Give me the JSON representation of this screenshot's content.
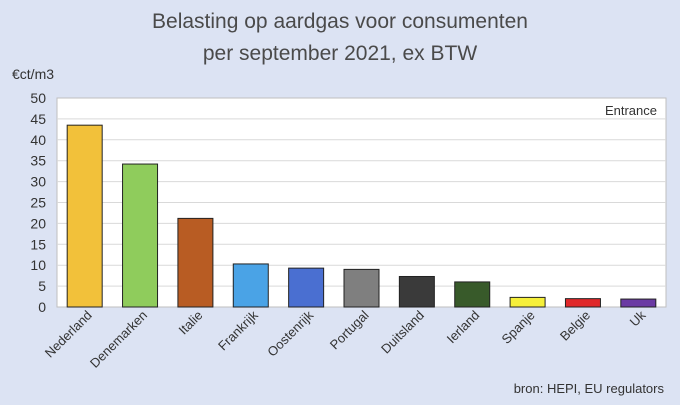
{
  "chart_data": {
    "type": "bar",
    "title": "Belasting op aardgas voor consumenten",
    "subtitle": "per september 2021, ex BTW",
    "ylabel": "€ct/m3",
    "ylim": [
      0,
      50
    ],
    "yticks": [
      0,
      5,
      10,
      15,
      20,
      25,
      30,
      35,
      40,
      45,
      50
    ],
    "grid": true,
    "annotation": "Entrance",
    "source": "bron: HEPI, EU regulators",
    "categories": [
      "Nederland",
      "Denemarken",
      "Italie",
      "Frankrijk",
      "Oostenrijk",
      "Portugal",
      "Duitsland",
      "Ierland",
      "Spanje",
      "Belgie",
      "Uk"
    ],
    "values": [
      43.5,
      34.2,
      21.2,
      10.3,
      9.3,
      9.0,
      7.3,
      6.0,
      2.3,
      2.0,
      1.9
    ],
    "colors": [
      "#f2c13a",
      "#8fcc5c",
      "#b85c23",
      "#4aa3e6",
      "#4a6fd1",
      "#7f7f7f",
      "#3a3a3a",
      "#385a2a",
      "#f5ef3a",
      "#e0282a",
      "#6a3aa3"
    ]
  }
}
